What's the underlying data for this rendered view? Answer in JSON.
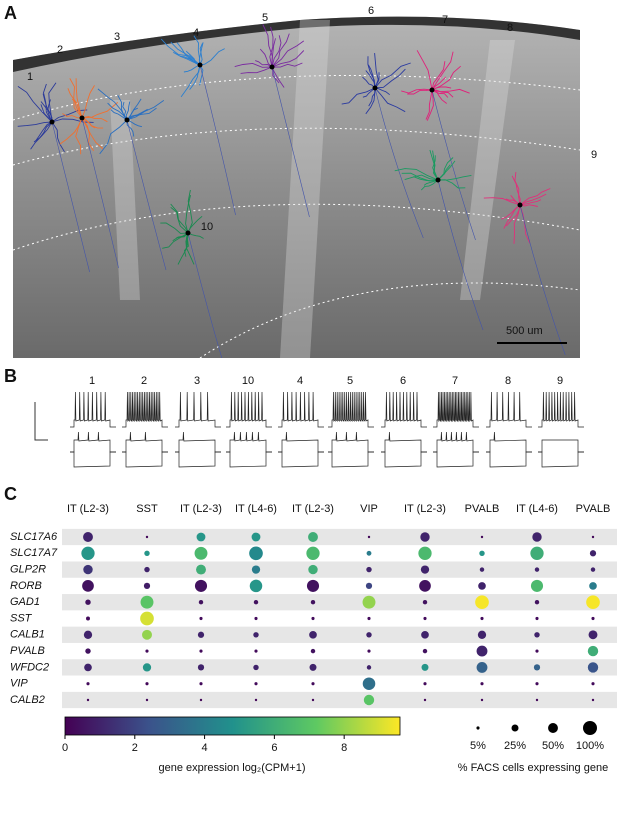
{
  "panel_labels": [
    "A",
    "B",
    "C"
  ],
  "panel_a": {
    "cell_labels": [
      "1",
      "2",
      "3",
      "4",
      "5",
      "6",
      "7",
      "8",
      "9",
      "10"
    ],
    "scale_bar": "500 um"
  },
  "panel_b": {
    "cell_labels": [
      "1",
      "2",
      "3",
      "10",
      "4",
      "5",
      "6",
      "7",
      "8",
      "9"
    ]
  },
  "chart_data": {
    "type": "dotplot",
    "columns": [
      "IT (L2-3)",
      "SST",
      "IT (L2-3)",
      "IT (L4-6)",
      "IT (L2-3)",
      "VIP",
      "IT (L2-3)",
      "PVALB",
      "IT (L4-6)",
      "PVALB"
    ],
    "genes": [
      "SLC17A6",
      "SLC17A7",
      "GLP2R",
      "RORB",
      "GAD1",
      "SST",
      "CALB1",
      "PVALB",
      "WFDC2",
      "VIP",
      "CALB2"
    ],
    "expression": [
      [
        1,
        0.2,
        5,
        5,
        6,
        0.2,
        1,
        0.2,
        1,
        0.2
      ],
      [
        5,
        5,
        6.5,
        4.5,
        6.5,
        4,
        6.5,
        5,
        6,
        1
      ],
      [
        1.5,
        1,
        6,
        4,
        6,
        1,
        1,
        1,
        1,
        1
      ],
      [
        0.5,
        0.8,
        0.5,
        5,
        0.5,
        2,
        0.5,
        1,
        6.5,
        4
      ],
      [
        0.5,
        7,
        0.5,
        0.5,
        0.5,
        8,
        0.5,
        9.5,
        0.5,
        9.5
      ],
      [
        0.3,
        9,
        0.3,
        0.3,
        0.3,
        0.3,
        0.3,
        0.3,
        0.3,
        0.3
      ],
      [
        1,
        8,
        1,
        1,
        1,
        1,
        1,
        1,
        1,
        1
      ],
      [
        0.5,
        0.3,
        0.3,
        0.3,
        0.5,
        0.3,
        0.5,
        1,
        0.3,
        6
      ],
      [
        1,
        5,
        1,
        1,
        1,
        1,
        5,
        3,
        3,
        2.5
      ],
      [
        0.3,
        0.2,
        0.3,
        0.3,
        0.3,
        3.5,
        0.3,
        0.3,
        0.3,
        0.3
      ],
      [
        0.2,
        0.2,
        0.2,
        0.2,
        0.2,
        7,
        0.2,
        0.2,
        0.2,
        0.2
      ]
    ],
    "percent": [
      [
        50,
        3,
        40,
        40,
        50,
        3,
        45,
        3,
        45,
        3
      ],
      [
        90,
        15,
        85,
        95,
        90,
        12,
        90,
        15,
        90,
        20
      ],
      [
        45,
        15,
        50,
        35,
        45,
        15,
        35,
        10,
        10,
        10
      ],
      [
        70,
        20,
        75,
        80,
        75,
        20,
        70,
        30,
        75,
        30
      ],
      [
        15,
        85,
        10,
        10,
        10,
        85,
        10,
        95,
        10,
        95
      ],
      [
        8,
        95,
        5,
        5,
        5,
        5,
        5,
        5,
        5,
        5
      ],
      [
        35,
        50,
        20,
        15,
        30,
        15,
        30,
        35,
        15,
        40
      ],
      [
        15,
        5,
        5,
        5,
        10,
        5,
        10,
        60,
        5,
        55
      ],
      [
        30,
        35,
        20,
        15,
        25,
        10,
        25,
        60,
        20,
        55
      ],
      [
        5,
        5,
        5,
        5,
        5,
        80,
        5,
        5,
        5,
        5
      ],
      [
        3,
        3,
        3,
        3,
        3,
        55,
        3,
        3,
        3,
        3
      ]
    ],
    "colorbar": {
      "label": "gene expression log₂(CPM+1)",
      "lim": [
        0,
        9.6
      ],
      "ticks": [
        0,
        2,
        4,
        6,
        8
      ]
    },
    "size_legend": {
      "label": "% FACS cells expressing gene",
      "ticks": [
        {
          "value": 5,
          "label": "5%"
        },
        {
          "value": 25,
          "label": "25%"
        },
        {
          "value": 50,
          "label": "50%"
        },
        {
          "value": 100,
          "label": "100%"
        }
      ]
    }
  }
}
